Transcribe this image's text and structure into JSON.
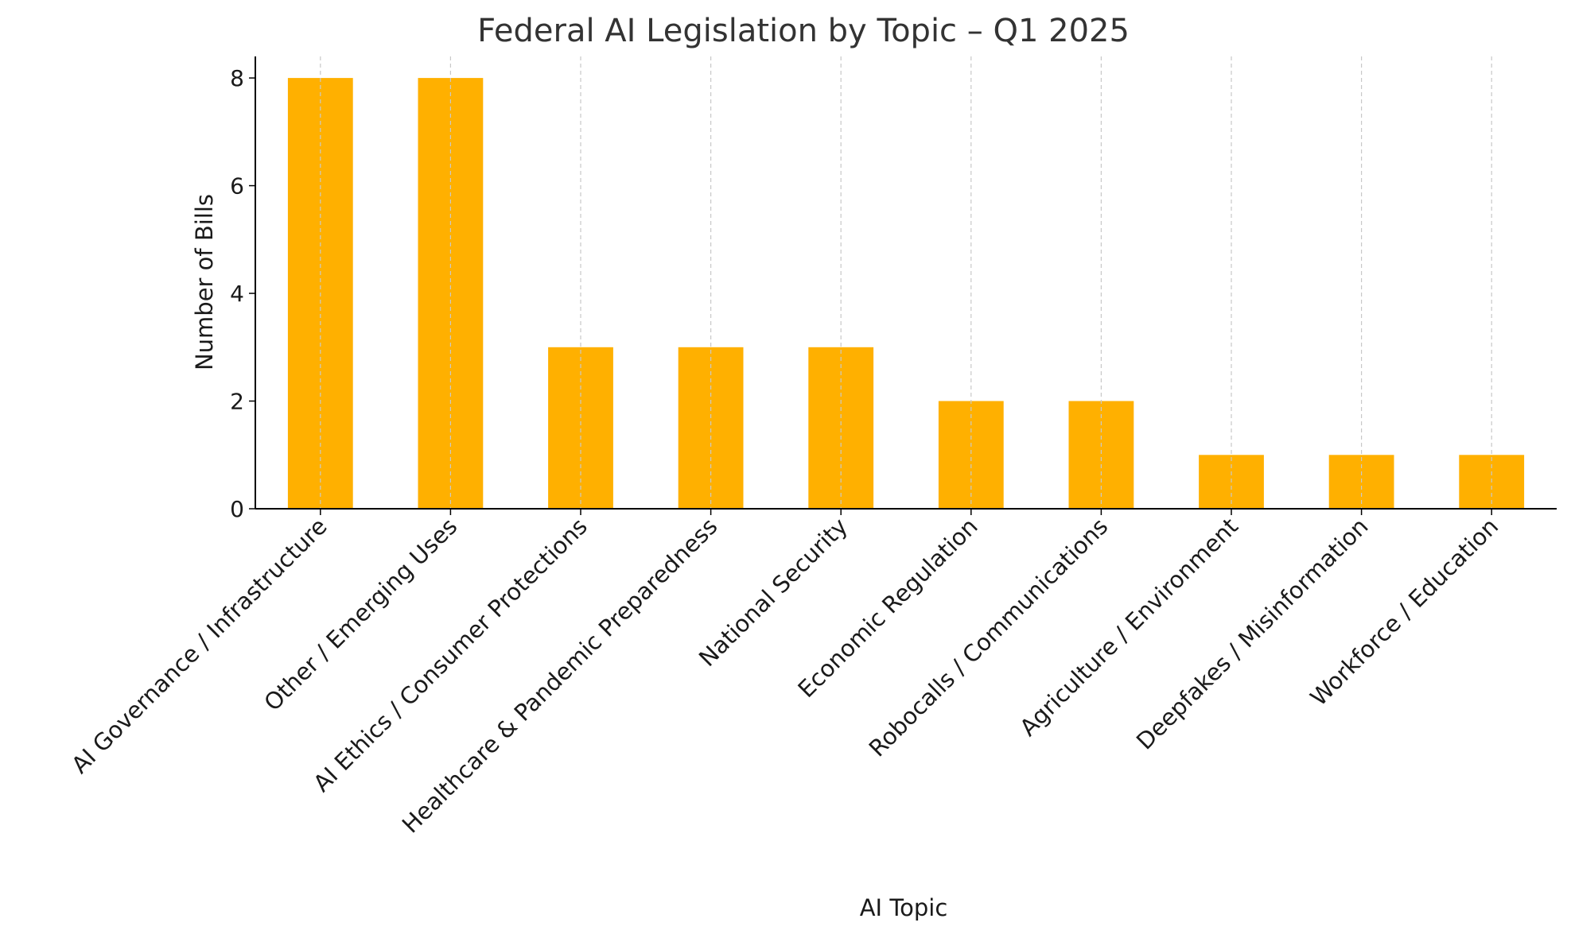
{
  "chart_data": {
    "type": "bar",
    "title": "Federal AI Legislation by Topic – Q1 2025",
    "xlabel": "AI Topic",
    "ylabel": "Number of Bills",
    "categories": [
      "AI Governance / Infrastructure",
      "Other / Emerging Uses",
      "AI Ethics / Consumer Protections",
      "Healthcare & Pandemic Preparedness",
      "National Security",
      "Economic Regulation",
      "Robocalls / Communications",
      "Agriculture / Environment",
      "Deepfakes / Misinformation",
      "Workforce / Education"
    ],
    "values": [
      8,
      8,
      3,
      3,
      3,
      2,
      2,
      1,
      1,
      1
    ],
    "ylim": [
      0,
      8.4
    ],
    "yticks": [
      0,
      2,
      4,
      6,
      8
    ],
    "grid": "vertical dashed",
    "bar_color": "#FFB000",
    "grid_color": "#c8c8c8",
    "axis_color": "#000000"
  }
}
